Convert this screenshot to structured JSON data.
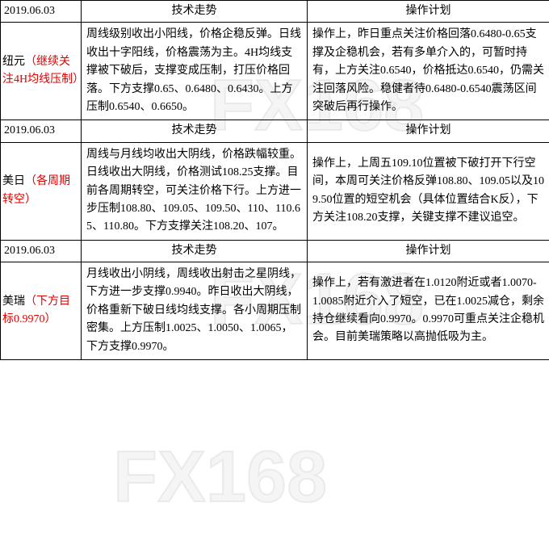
{
  "watermark": "FX168",
  "table": {
    "headers": {
      "trend": "技术走势",
      "plan": "操作计划"
    },
    "colors": {
      "label_main": "#000000",
      "label_sub": "#dd0000",
      "border": "#000000",
      "bg": "#ffffff"
    },
    "col_widths": {
      "date": 100,
      "trend": 280,
      "plan": 300
    },
    "rows": [
      {
        "date": "2019.06.03",
        "label_main": "纽元",
        "label_sub": "（继续关注4H均线压制）",
        "trend": "周线级别收出小阳线，价格企稳反弹。日线收出十字阳线，价格震荡为主。4H均线支撑被下破后，支撑变成压制，打压价格回落。下方支撑0.65、0.6480、0.6430。上方压制0.6540、0.6650。",
        "plan": "操作上，昨日重点关注价格回落0.6480-0.65支撑及企稳机会，若有多单介入的，可暂时持有，上方关注0.6540，价格抵达0.6540，仍需关注回落风险。稳健者待0.6480-0.6540震荡区间突破后再行操作。"
      },
      {
        "date": "2019.06.03",
        "label_main": "美日",
        "label_sub": "（各周期转空）",
        "trend": "周线与月线均收出大阴线，价格跌幅较重。日线收出大阴线，价格测试108.25支撑。目前各周期转空，可关注价格下行。上方进一步压制108.80、109.05、109.50、110、110.65、110.80。下方支撑关注108.20、107。",
        "plan": "操作上，上周五109.10位置被下破打开下行空间，本周可关注价格反弹108.80、109.05以及109.50位置的短空机会（具体位置结合K反），下方关注108.20支撑，关键支撑不建议追空。"
      },
      {
        "date": "2019.06.03",
        "label_main": "美瑞",
        "label_sub": "（下方目标0.9970）",
        "trend": "月线收出小阴线，周线收出射击之星阴线，下方进一步支撑0.9940。昨日收出大阴线，价格重新下破日线均线支撑。各小周期压制密集。上方压制1.0025、1.0050、1.0065，下方支撑0.9970。",
        "plan": "操作上，若有激进者在1.0120附近或者1.0070-1.0085附近介入了短空，已在1.0025减仓，剩余持仓继续看向0.9970。0.9970可重点关注企稳机会。目前美瑞策略以高抛低吸为主。"
      }
    ]
  }
}
